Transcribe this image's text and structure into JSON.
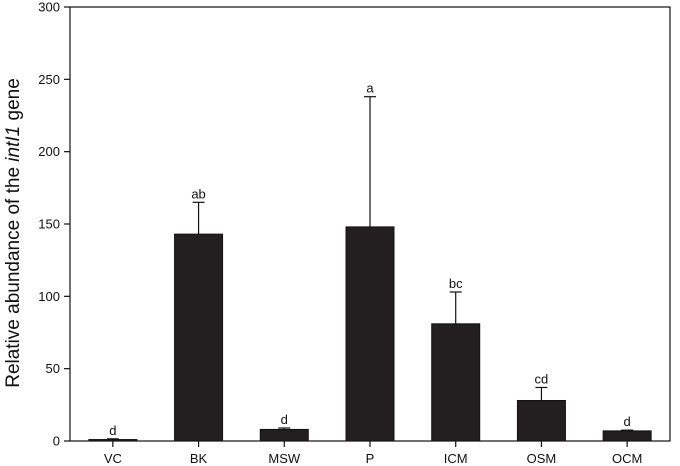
{
  "chart_data": {
    "type": "bar",
    "categories": [
      "VC",
      "BK",
      "MSW",
      "P",
      "ICM",
      "OSM",
      "OCM"
    ],
    "values": [
      1,
      143,
      8,
      148,
      81,
      28,
      7
    ],
    "error_upper": [
      0.5,
      22,
      1,
      90,
      22,
      9,
      0.5
    ],
    "significance_letters": [
      "d",
      "ab",
      "d",
      "a",
      "bc",
      "cd",
      "d"
    ],
    "xlabel": "",
    "ylabel": {
      "prefix": "Relative abundance of the ",
      "gene": "intI1",
      "suffix": " gene"
    },
    "ylim": [
      0,
      300
    ],
    "yticks": [
      0,
      50,
      100,
      150,
      200,
      250,
      300
    ],
    "grid": false,
    "bar_color": "#231f20"
  }
}
